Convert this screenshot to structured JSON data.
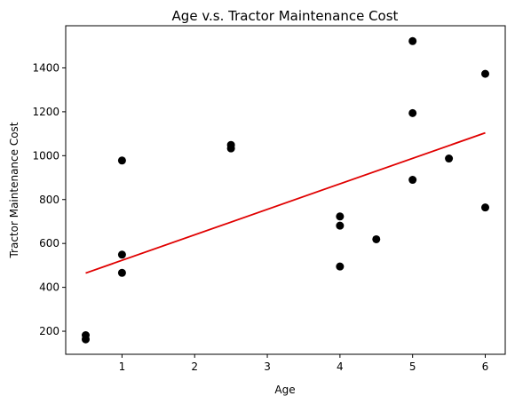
{
  "chart_data": {
    "type": "scatter",
    "title": "Age v.s. Tractor Maintenance Cost",
    "xlabel": "Age",
    "ylabel": "Tractor Maintenance Cost",
    "xlim": [
      0.225,
      6.275
    ],
    "ylim": [
      95,
      1592
    ],
    "xticks": [
      1,
      2,
      3,
      4,
      5,
      6
    ],
    "yticks": [
      200,
      400,
      600,
      800,
      1000,
      1200,
      1400
    ],
    "grid": false,
    "points": [
      {
        "x": 0.5,
        "y": 182
      },
      {
        "x": 0.5,
        "y": 163
      },
      {
        "x": 1.0,
        "y": 978
      },
      {
        "x": 1.0,
        "y": 549
      },
      {
        "x": 1.0,
        "y": 466
      },
      {
        "x": 2.5,
        "y": 1049
      },
      {
        "x": 2.5,
        "y": 1033
      },
      {
        "x": 4.0,
        "y": 723
      },
      {
        "x": 4.0,
        "y": 681
      },
      {
        "x": 4.0,
        "y": 495
      },
      {
        "x": 4.5,
        "y": 619
      },
      {
        "x": 5.0,
        "y": 1522
      },
      {
        "x": 5.0,
        "y": 1194
      },
      {
        "x": 5.0,
        "y": 890
      },
      {
        "x": 5.5,
        "y": 987
      },
      {
        "x": 6.0,
        "y": 1373
      },
      {
        "x": 6.0,
        "y": 764
      }
    ],
    "fit_line": {
      "x": [
        0.5,
        6.0
      ],
      "y": [
        465,
        1104
      ]
    },
    "colors": {
      "points": "#000000",
      "fit_line": "#e00000"
    }
  }
}
